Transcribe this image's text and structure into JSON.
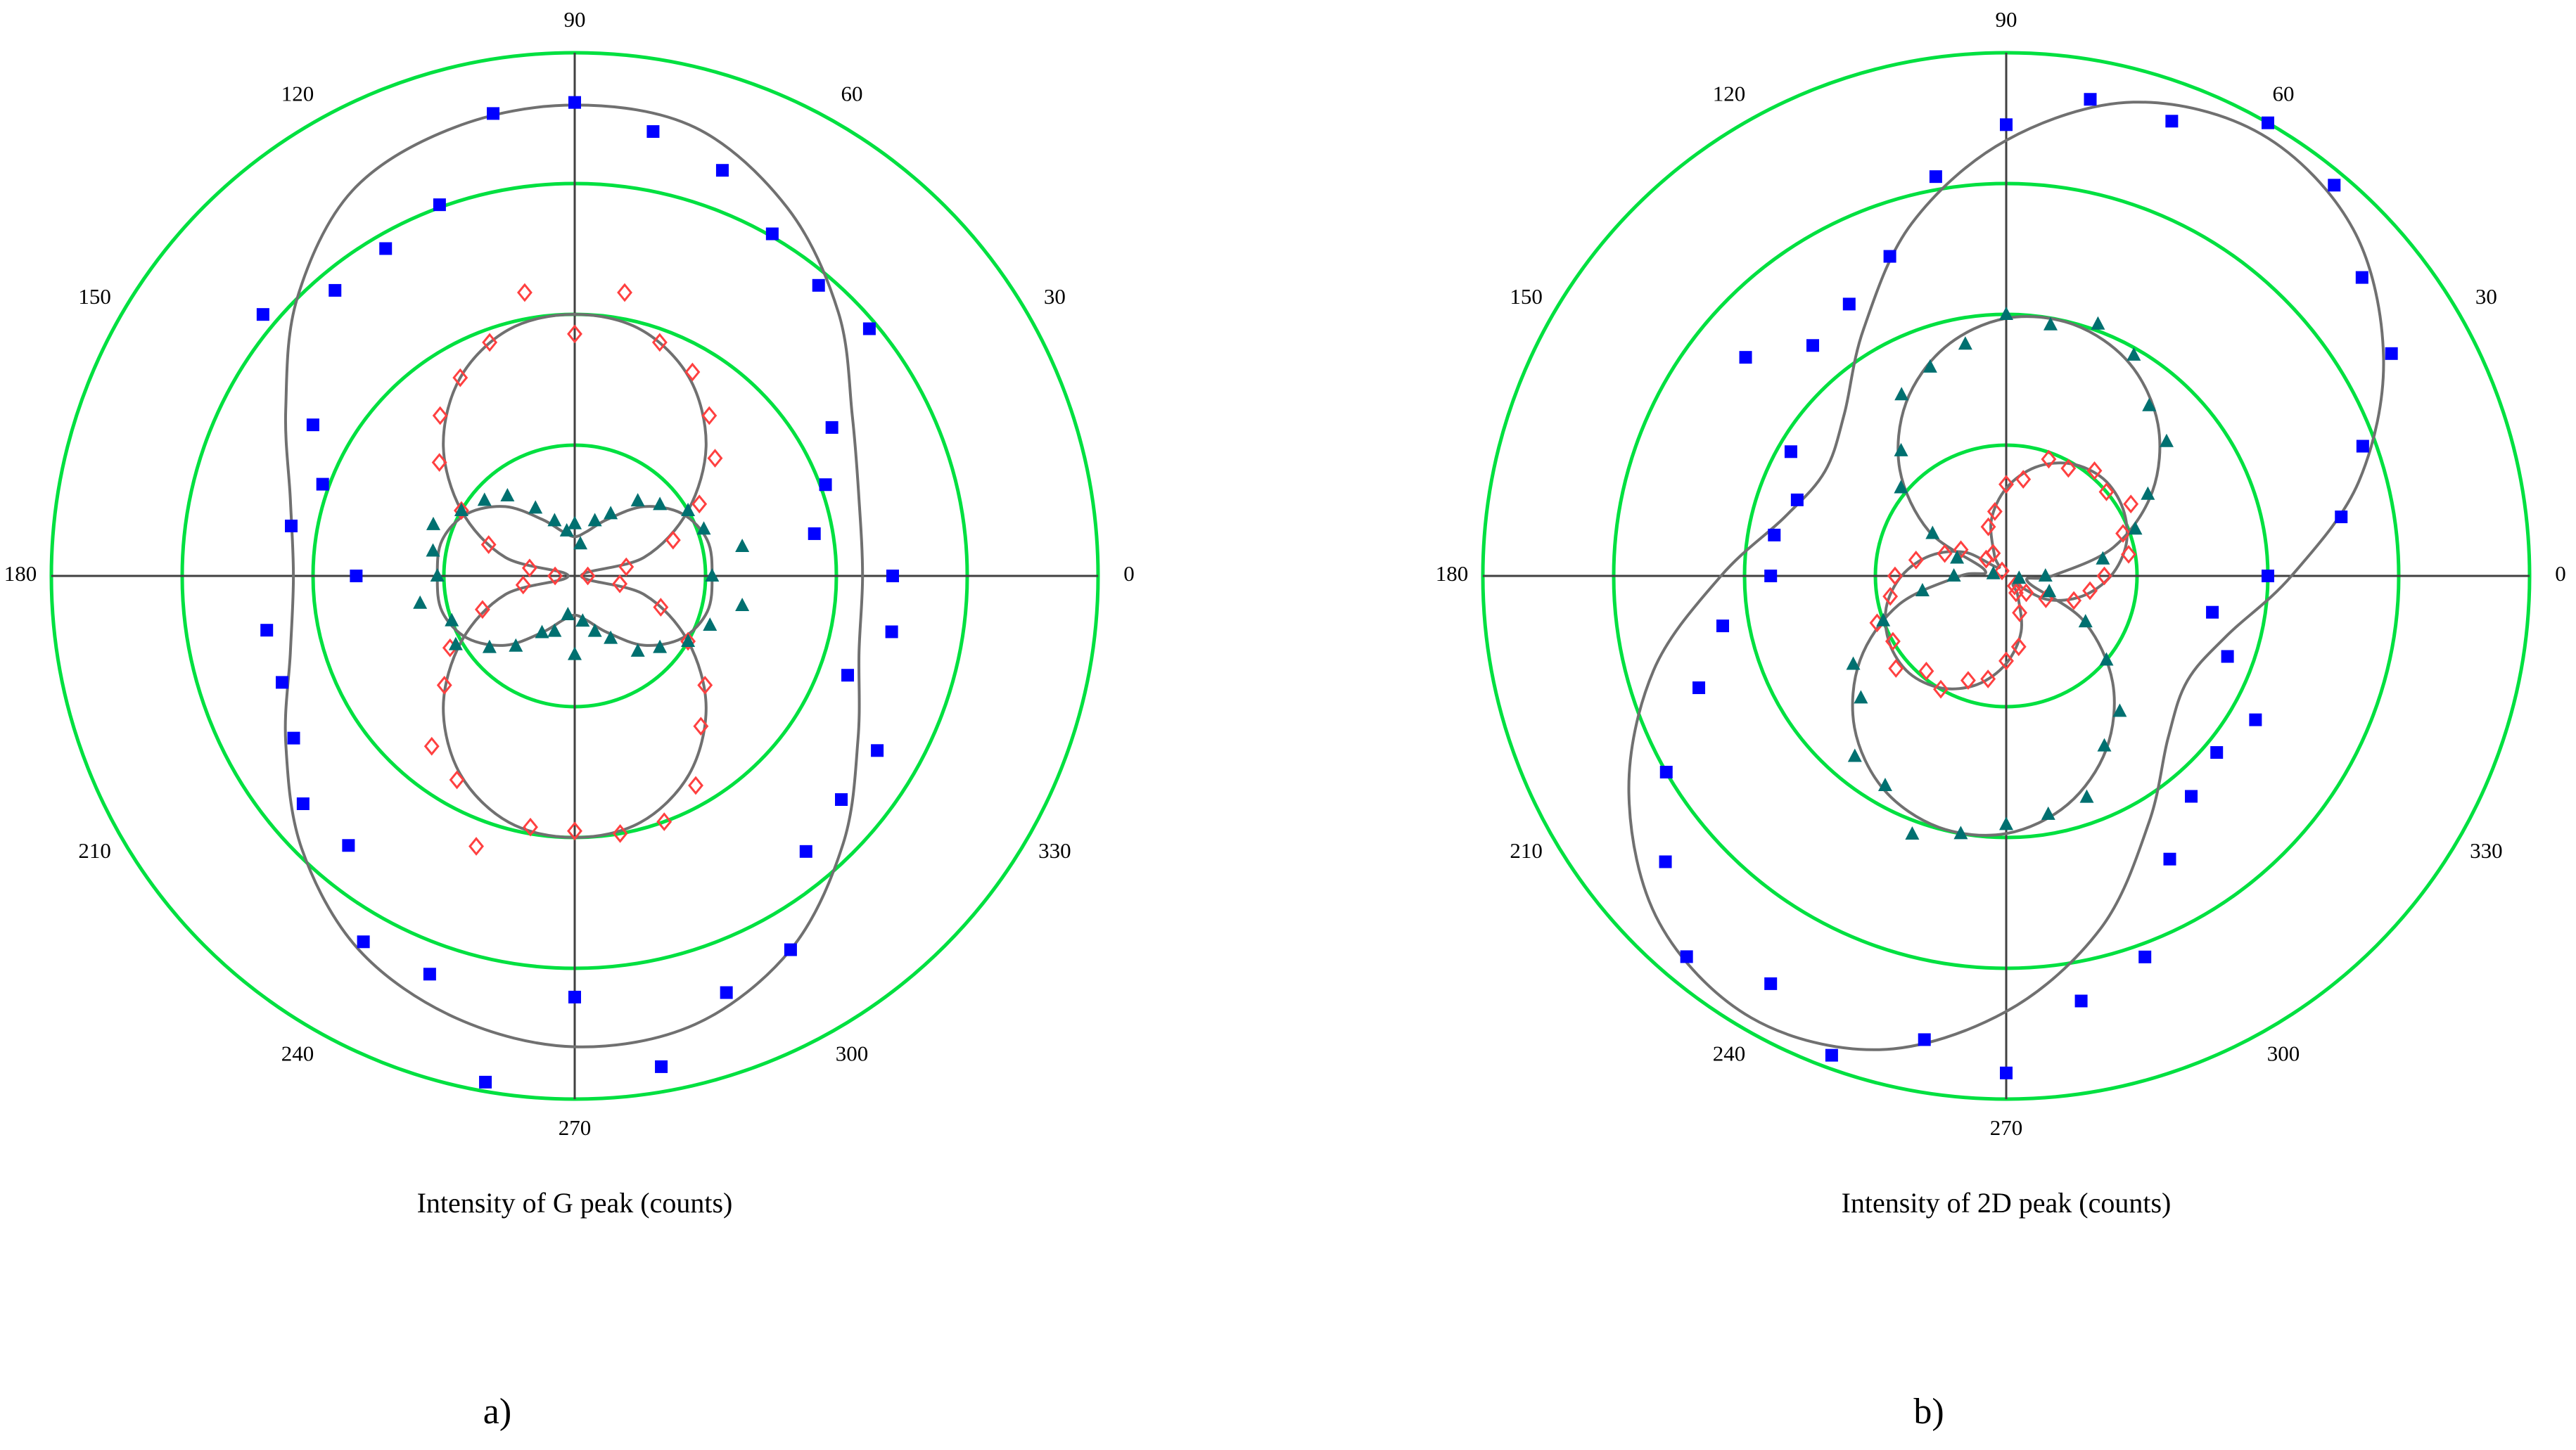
{
  "chart_data": [
    {
      "type": "polar",
      "title": "Intensity of G peak (counts)",
      "panel_label": "a)",
      "rlim": [
        0,
        4
      ],
      "rticks": [
        1,
        2,
        3,
        4
      ],
      "grid_color": "#00e040",
      "axis_color": "#404040",
      "thetaticks": [
        0,
        30,
        60,
        90,
        120,
        150,
        180,
        210,
        240,
        270,
        300,
        330
      ],
      "series": [
        {
          "color": "#0000ff",
          "marker": "square",
          "theta": [
            0,
            10,
            20,
            30,
            40,
            50,
            60,
            70,
            80,
            90,
            100,
            110,
            120,
            130,
            140,
            150,
            160,
            170,
            180,
            190,
            200,
            210,
            220,
            230,
            240,
            250,
            260,
            270,
            280,
            290,
            300,
            310,
            320,
            330,
            340,
            350
          ],
          "r": [
            2.43,
            1.86,
            2.04,
            2.27,
            2.94,
            2.9,
            3.02,
            3.3,
            3.45,
            3.62,
            3.59,
            3.02,
            2.89,
            2.85,
            3.11,
            2.31,
            2.05,
            2.2,
            1.67,
            2.39,
            2.38,
            2.48,
            2.71,
            2.69,
            3.23,
            3.24,
            3.93,
            3.22,
            3.81,
            3.39,
            3.3,
            2.75,
            2.66,
            2.67,
            2.22,
            2.46
          ]
        },
        {
          "color": "#ff4040",
          "marker": "diamond",
          "theta": [
            0,
            10,
            20,
            30,
            40,
            50,
            60,
            70,
            80,
            90,
            100,
            110,
            120,
            130,
            140,
            150,
            160,
            170,
            180,
            190,
            200,
            210,
            220,
            230,
            240,
            250,
            260,
            270,
            280,
            290,
            300,
            310,
            320,
            330,
            340,
            350
          ],
          "r": [
            0.1,
            0.4,
            0.8,
            1.1,
            1.4,
            1.6,
            1.8,
            1.9,
            2.2,
            1.85,
            2.2,
            1.9,
            1.75,
            1.6,
            1.35,
            1.0,
            0.7,
            0.35,
            0.15,
            0.4,
            0.75,
            1.1,
            1.3,
            1.7,
            1.8,
            2.2,
            1.95,
            1.95,
            2.0,
            2.0,
            1.85,
            1.5,
            1.3,
            1.0,
            0.7,
            0.35
          ]
        },
        {
          "color": "#007070",
          "marker": "triangle",
          "theta": [
            0,
            10,
            20,
            30,
            40,
            50,
            60,
            70,
            80,
            90,
            100,
            110,
            120,
            130,
            140,
            150,
            160,
            170,
            180,
            190,
            200,
            210,
            220,
            230,
            240,
            250,
            260,
            270,
            280,
            290,
            300,
            310,
            320,
            330,
            340,
            350
          ],
          "r": [
            1.05,
            1.3,
            1.05,
            1.0,
            0.85,
            0.75,
            0.55,
            0.45,
            0.25,
            0.4,
            0.35,
            0.45,
            0.6,
            0.8,
            0.9,
            1.0,
            1.15,
            1.1,
            1.05,
            1.2,
            1.0,
            1.05,
            0.85,
            0.7,
            0.5,
            0.45,
            0.3,
            0.6,
            0.35,
            0.45,
            0.55,
            0.75,
            0.85,
            1.0,
            1.1,
            1.3
          ]
        }
      ],
      "fits": [
        {
          "color": "#707070",
          "theta": [
            0,
            15,
            30,
            45,
            60,
            75,
            90,
            105,
            120,
            135,
            150,
            165,
            180,
            195,
            210,
            225,
            240,
            255,
            270,
            285,
            300,
            315,
            330,
            345
          ],
          "r": [
            2.2,
            2.25,
            2.45,
            2.85,
            3.25,
            3.55,
            3.6,
            3.55,
            3.4,
            3.0,
            2.55,
            2.25,
            2.15,
            2.25,
            2.55,
            2.95,
            3.3,
            3.5,
            3.6,
            3.55,
            3.3,
            2.9,
            2.5,
            2.25
          ]
        },
        {
          "color": "#707070",
          "theta": [
            0,
            15,
            30,
            45,
            60,
            75,
            90,
            105,
            120,
            135,
            150,
            165,
            180,
            195,
            210,
            225,
            240,
            255,
            270,
            285,
            300,
            315,
            330,
            345
          ],
          "r": [
            0.05,
            0.55,
            1.0,
            1.42,
            1.75,
            1.95,
            2.0,
            1.95,
            1.75,
            1.42,
            1.0,
            0.55,
            0.05,
            0.55,
            1.0,
            1.42,
            1.75,
            1.95,
            2.0,
            1.95,
            1.75,
            1.42,
            1.0,
            0.55
          ]
        },
        {
          "color": "#707070",
          "theta": [
            0,
            15,
            30,
            45,
            60,
            75,
            90,
            105,
            120,
            135,
            150,
            165,
            180,
            195,
            210,
            225,
            240,
            255,
            270,
            285,
            300,
            315,
            330,
            345
          ],
          "r": [
            1.05,
            1.05,
            0.95,
            0.75,
            0.5,
            0.35,
            0.3,
            0.35,
            0.5,
            0.75,
            0.95,
            1.05,
            1.05,
            1.05,
            0.95,
            0.75,
            0.5,
            0.35,
            0.3,
            0.35,
            0.5,
            0.75,
            0.95,
            1.05
          ]
        }
      ]
    },
    {
      "type": "polar",
      "title": "Intensity of 2D peak (counts)",
      "panel_label": "b)",
      "rlim": [
        0,
        4
      ],
      "rticks": [
        1,
        2,
        3,
        4
      ],
      "grid_color": "#00e040",
      "axis_color": "#404040",
      "thetaticks": [
        0,
        30,
        60,
        90,
        120,
        150,
        180,
        210,
        240,
        270,
        300,
        330
      ],
      "series": [
        {
          "color": "#0000ff",
          "marker": "square",
          "theta": [
            0,
            10,
            20,
            30,
            40,
            50,
            60,
            70,
            80,
            90,
            100,
            110,
            120,
            130,
            140,
            150,
            160,
            170,
            180,
            190,
            200,
            210,
            220,
            230,
            240,
            250,
            260,
            270,
            280,
            290,
            300,
            310,
            320,
            330,
            340,
            350
          ],
          "r": [
            2.0,
            2.6,
            2.9,
            3.4,
            3.55,
            3.9,
            4.0,
            3.7,
            3.7,
            3.45,
            3.1,
            2.6,
            2.4,
            2.3,
            2.6,
            1.9,
            1.7,
            1.8,
            1.8,
            2.2,
            2.5,
            3.0,
            3.4,
            3.8,
            3.6,
            3.9,
            3.6,
            3.8,
            3.3,
            3.1,
            2.5,
            2.2,
            2.1,
            2.2,
            1.8,
            1.6
          ]
        },
        {
          "color": "#ff4040",
          "marker": "diamond",
          "theta": [
            0,
            10,
            20,
            30,
            40,
            50,
            60,
            70,
            80,
            90,
            100,
            110,
            120,
            130,
            140,
            150,
            160,
            170,
            180,
            190,
            200,
            210,
            220,
            230,
            240,
            250,
            260,
            270,
            280,
            290,
            300,
            310,
            320,
            330,
            340,
            350
          ],
          "r": [
            0.75,
            0.95,
            0.95,
            1.1,
            1.0,
            1.05,
            0.95,
            0.95,
            0.75,
            0.7,
            0.5,
            0.4,
            0.2,
            0.05,
            0.2,
            0.4,
            0.5,
            0.7,
            0.85,
            0.9,
            1.05,
            1.0,
            1.1,
            0.95,
            1.0,
            0.85,
            0.8,
            0.65,
            0.55,
            0.3,
            0.15,
            0.1,
            0.2,
            0.35,
            0.55,
            0.65
          ]
        },
        {
          "color": "#007070",
          "marker": "triangle",
          "theta": [
            0,
            10,
            20,
            30,
            40,
            50,
            60,
            70,
            80,
            90,
            100,
            110,
            120,
            130,
            140,
            150,
            160,
            170,
            180,
            190,
            200,
            210,
            220,
            230,
            240,
            250,
            260,
            270,
            280,
            290,
            300,
            310,
            320,
            330,
            340,
            350
          ],
          "r": [
            0.3,
            0.75,
            1.05,
            1.25,
            1.6,
            1.7,
            1.95,
            2.05,
            1.95,
            2.0,
            1.8,
            1.7,
            1.6,
            1.25,
            1.05,
            0.65,
            0.4,
            0.1,
            0.4,
            0.65,
            1.0,
            1.35,
            1.45,
            1.8,
            1.85,
            2.1,
            2.0,
            1.9,
            1.85,
            1.8,
            1.5,
            1.35,
            1.0,
            0.7,
            0.35,
            0.1
          ]
        }
      ],
      "fits": [
        {
          "color": "#707070",
          "theta": [
            0,
            15,
            30,
            45,
            60,
            75,
            90,
            105,
            120,
            135,
            150,
            165,
            180,
            195,
            210,
            225,
            240,
            255,
            270,
            285,
            300,
            315,
            330,
            345
          ],
          "r": [
            2.18,
            2.79,
            3.33,
            3.75,
            3.9,
            3.75,
            3.33,
            2.79,
            2.18,
            1.75,
            1.6,
            1.75,
            2.18,
            2.79,
            3.33,
            3.75,
            3.9,
            3.75,
            3.33,
            2.79,
            2.18,
            1.75,
            1.6,
            1.75
          ]
        },
        {
          "color": "#707070",
          "theta": [
            0,
            15,
            30,
            45,
            60,
            75,
            90,
            105,
            120,
            135,
            150,
            165,
            180,
            195,
            210,
            225,
            240,
            255,
            270,
            285,
            300,
            315,
            330,
            345
          ],
          "r": [
            0.8,
            0.95,
            1.03,
            1.05,
            0.99,
            0.86,
            0.67,
            0.44,
            0.18,
            0.09,
            0.36,
            0.6,
            0.8,
            0.95,
            1.03,
            1.05,
            0.99,
            0.86,
            0.67,
            0.44,
            0.18,
            0.09,
            0.36,
            0.6
          ]
        },
        {
          "color": "#707070",
          "theta": [
            0,
            15,
            30,
            45,
            60,
            75,
            90,
            105,
            120,
            135,
            150,
            165,
            180,
            195,
            210,
            225,
            240,
            255,
            270,
            285,
            300,
            315,
            330,
            345
          ],
          "r": [
            0.35,
            0.85,
            1.29,
            1.64,
            1.88,
            1.99,
            1.97,
            1.81,
            1.53,
            1.15,
            0.68,
            0.17,
            0.35,
            0.85,
            1.29,
            1.64,
            1.88,
            1.99,
            1.97,
            1.81,
            1.53,
            1.15,
            0.68,
            0.17
          ]
        }
      ]
    }
  ]
}
